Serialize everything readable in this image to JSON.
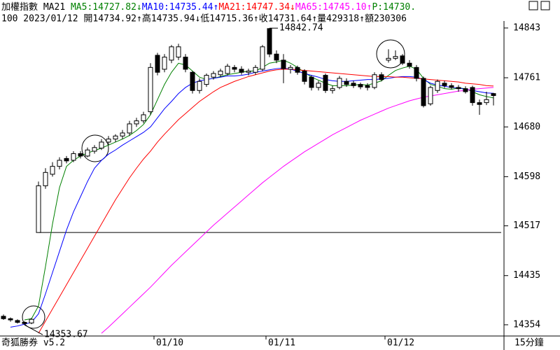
{
  "chart_data": {
    "type": "candlestick",
    "title": "加權指數",
    "indicator": "MA21",
    "header_items": [
      {
        "text": "MA5:14727.82↓",
        "color": "#008000"
      },
      {
        "text": "MA10:14735.44↑",
        "color": "#0000ff"
      },
      {
        "text": "MA21:14747.34↓",
        "color": "#ff0000"
      },
      {
        "text": "MA65:14745.10↑",
        "color": "#ff00ff"
      },
      {
        "text": "P:14730.",
        "color": "#008000"
      }
    ],
    "info_line": "100 2023/01/12 開14734.92↑高14735.94↓低14715.36↑收14731.64↑量429318↑額230306",
    "footer_left": "奇狐勝券 v5.2",
    "period": "15分鐘",
    "categories": [
      null,
      null,
      null,
      null,
      null,
      null,
      null,
      null,
      null,
      null,
      null,
      null,
      null,
      null,
      null,
      null,
      null,
      null,
      null,
      null,
      null,
      null,
      "01/10",
      null,
      null,
      null,
      null,
      null,
      null,
      null,
      null,
      null,
      null,
      null,
      null,
      null,
      null,
      null,
      "01/11",
      null,
      null,
      null,
      null,
      null,
      null,
      null,
      null,
      null,
      null,
      null,
      null,
      null,
      null,
      null,
      null,
      "01/12",
      null,
      null,
      null,
      null,
      null,
      null,
      null,
      null,
      null,
      null,
      null,
      null,
      null,
      null,
      null
    ],
    "open": [
      14368,
      14364,
      14361,
      14358,
      14357,
      14506,
      14583,
      14602,
      14615,
      14628,
      14625,
      14636,
      14632,
      14640,
      14645,
      14655,
      14660,
      14665,
      14670,
      14685,
      14690,
      14705,
      14798,
      14775,
      14790,
      14795,
      14795,
      14770,
      14740,
      14750,
      14762,
      14766,
      14768,
      14778,
      14775,
      14770,
      14770,
      14775,
      14842,
      14800,
      14790,
      14775,
      14778,
      14772,
      14762,
      14745,
      14765,
      14740,
      14745,
      14755,
      14752,
      14750,
      14748,
      14745,
      14766,
      14790,
      14793,
      14797,
      14785,
      14778,
      14760,
      14718,
      14740,
      14752,
      14748,
      14745,
      14743,
      14745,
      14720,
      14720,
      14734.92
    ],
    "high": [
      14371,
      14366,
      14363,
      14360,
      14365,
      14590,
      14612,
      14622,
      14630,
      14632,
      14640,
      14640,
      14646,
      14650,
      14660,
      14665,
      14668,
      14675,
      14690,
      14695,
      14705,
      14785,
      14802,
      14800,
      14815,
      14817,
      14800,
      14772,
      14760,
      14768,
      14772,
      14776,
      14784,
      14782,
      14780,
      14776,
      14782,
      14815,
      14842.74,
      14806,
      14800,
      14782,
      14781,
      14775,
      14765,
      14756,
      14768,
      14748,
      14764,
      14760,
      14756,
      14753,
      14752,
      14770,
      14770,
      14808,
      14806,
      14800,
      14790,
      14782,
      14763,
      14748,
      14758,
      14756,
      14752,
      14749,
      14747,
      14748,
      14725,
      14738,
      14735.94
    ],
    "low": [
      14362,
      14359,
      14356,
      14353.67,
      14355,
      14506,
      14578,
      14598,
      14610,
      14620,
      14622,
      14628,
      14630,
      14636,
      14642,
      14650,
      14655,
      14660,
      14665,
      14680,
      14686,
      14700,
      14765,
      14770,
      14785,
      14790,
      14770,
      14735,
      14735,
      14746,
      14758,
      14762,
      14765,
      14770,
      14766,
      14765,
      14766,
      14772,
      14795,
      14785,
      14752,
      14768,
      14766,
      14750,
      14740,
      14740,
      14736,
      14735,
      14742,
      14746,
      14744,
      14742,
      14740,
      14742,
      14755,
      14786,
      14790,
      14782,
      14776,
      14755,
      14712,
      14715,
      14736,
      14744,
      14742,
      14738,
      14735,
      14715,
      14700,
      14716,
      14715.36
    ],
    "close": [
      14364,
      14362,
      14358,
      14356,
      14363,
      14583,
      14605,
      14615,
      14625,
      14624,
      14636,
      14632,
      14642,
      14646,
      14655,
      14660,
      14665,
      14670,
      14685,
      14690,
      14700,
      14778,
      14770,
      14795,
      14812,
      14812,
      14775,
      14740,
      14755,
      14765,
      14768,
      14772,
      14780,
      14775,
      14770,
      14772,
      14778,
      14812,
      14800,
      14790,
      14776,
      14778,
      14770,
      14755,
      14745,
      14752,
      14740,
      14743,
      14760,
      14750,
      14748,
      14746,
      14745,
      14766,
      14758,
      14793,
      14796,
      14785,
      14780,
      14760,
      14715,
      14745,
      14755,
      14748,
      14745,
      14743,
      14738,
      14720,
      14717,
      14725,
      14731.64
    ],
    "up_color": "#ffffff",
    "down_color": "#000000",
    "series": [
      {
        "name": "MA5",
        "color": "#008000",
        "values": [
          null,
          null,
          null,
          14362,
          14364,
          14385,
          14450,
          14520,
          14580,
          14615,
          14625,
          14632,
          14637,
          14641,
          14645,
          14650,
          14655,
          14660,
          14666,
          14674,
          14684,
          14700,
          14725,
          14750,
          14770,
          14785,
          14782,
          14772,
          14762,
          14758,
          14760,
          14763,
          14766,
          14768,
          14770,
          14772,
          14772,
          14778,
          14785,
          14787,
          14790,
          14785,
          14778,
          14770,
          14762,
          14757,
          14752,
          14748,
          14748,
          14748,
          14749,
          14750,
          14749,
          14752,
          14756,
          14765,
          14773,
          14777,
          14780,
          14775,
          14760,
          14750,
          14747,
          14743,
          14742,
          14744,
          14743,
          14738,
          14733,
          14730,
          14727.82
        ]
      },
      {
        "name": "MA10",
        "color": "#0000ff",
        "values": [
          null,
          14350,
          14352,
          14355,
          14358,
          14372,
          14405,
          14440,
          14475,
          14510,
          14540,
          14565,
          14590,
          14612,
          14625,
          14635,
          14642,
          14650,
          14657,
          14664,
          14671,
          14680,
          14695,
          14710,
          14722,
          14735,
          14745,
          14752,
          14756,
          14758,
          14760,
          14762,
          14764,
          14764,
          14765,
          14767,
          14770,
          14772,
          14774,
          14776,
          14777,
          14775,
          14772,
          14768,
          14765,
          14762,
          14758,
          14756,
          14755,
          14755,
          14756,
          14757,
          14758,
          14758,
          14759,
          14760,
          14762,
          14763,
          14763,
          14762,
          14758,
          14752,
          14749,
          14747,
          14745,
          14744,
          14742,
          14740,
          14738,
          14736,
          14735.44
        ]
      },
      {
        "name": "MA21",
        "color": "#ff0000",
        "values": [
          null,
          null,
          null,
          null,
          null,
          14340,
          14360,
          14380,
          14400,
          14420,
          14440,
          14460,
          14480,
          14500,
          14520,
          14540,
          14560,
          14578,
          14596,
          14612,
          14627,
          14640,
          14655,
          14668,
          14680,
          14692,
          14702,
          14712,
          14722,
          14730,
          14738,
          14745,
          14750,
          14755,
          14759,
          14763,
          14766,
          14769,
          14772,
          14774,
          14775,
          14775,
          14774,
          14773,
          14772,
          14771,
          14770,
          14769,
          14768,
          14767,
          14766,
          14765,
          14764,
          14763,
          14763,
          14763,
          14762,
          14762,
          14761,
          14760,
          14759,
          14758,
          14757,
          14756,
          14755,
          14754,
          14752,
          14751,
          14750,
          14748,
          14747.34
        ]
      },
      {
        "name": "MA65",
        "color": "#ff00ff",
        "values": [
          null,
          null,
          null,
          null,
          null,
          null,
          null,
          null,
          null,
          null,
          null,
          null,
          null,
          null,
          14340,
          14350,
          14361,
          14372,
          14383,
          14394,
          14405,
          14416,
          14428,
          14440,
          14452,
          14463,
          14474,
          14485,
          14496,
          14507,
          14518,
          14528,
          14538,
          14548,
          14558,
          14568,
          14578,
          14588,
          14597,
          14606,
          14615,
          14623,
          14631,
          14639,
          14646,
          14653,
          14660,
          14667,
          14673,
          14679,
          14685,
          14691,
          14696,
          14701,
          14706,
          14711,
          14715,
          14719,
          14723,
          14726,
          14729,
          14731,
          14733,
          14735,
          14737,
          14739,
          14740,
          14742,
          14743,
          14744,
          14745.1
        ]
      }
    ],
    "reference_line": 14506,
    "ylim": [
      14337.8,
      14854.5
    ],
    "yticks": [
      14843,
      14761,
      14680,
      14598,
      14517,
      14435,
      14354
    ]
  }
}
